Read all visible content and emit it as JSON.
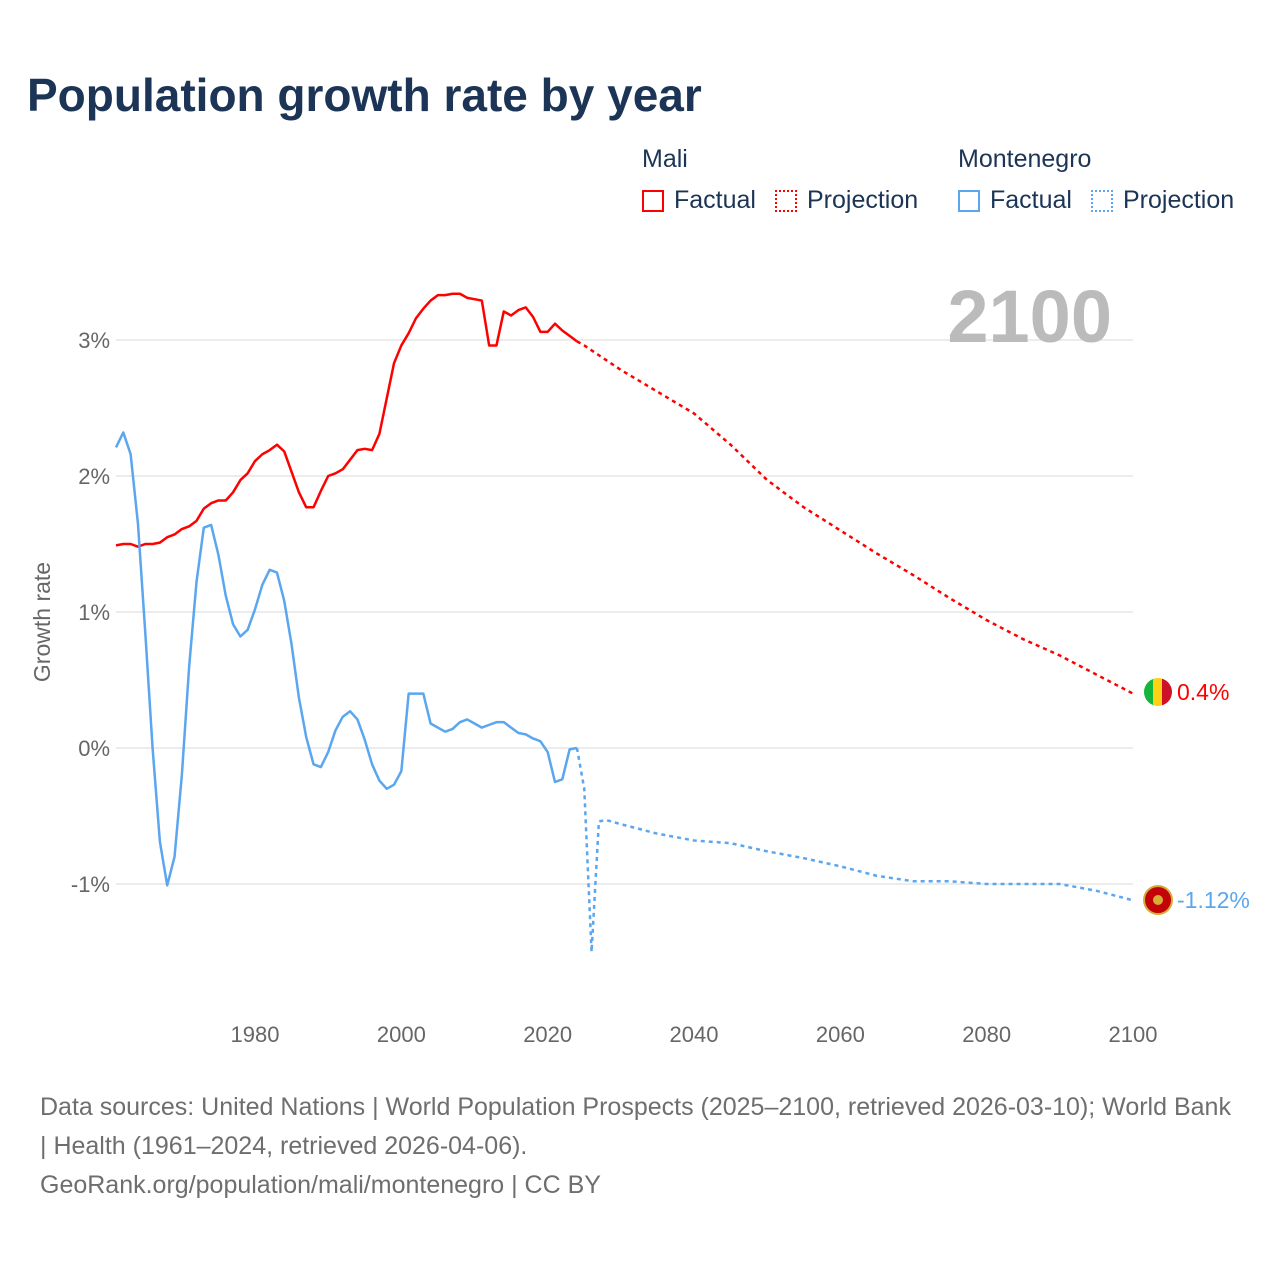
{
  "title": "Population growth rate by year",
  "legend": {
    "groups": [
      {
        "name": "Mali",
        "factual": "Factual",
        "projection": "Projection"
      },
      {
        "name": "Montenegro",
        "factual": "Factual",
        "projection": "Projection"
      }
    ]
  },
  "year_label": "2100",
  "colors": {
    "mali": "#ff0000",
    "montenegro": "#5aa6ef",
    "grid": "#e6e6e6",
    "axis_text": "#666666"
  },
  "chart_data": {
    "type": "line",
    "title": "Population growth rate by year",
    "xlabel": "",
    "ylabel": "Growth rate",
    "xlim": [
      1961,
      2100
    ],
    "ylim": [
      -1.5,
      3.4
    ],
    "x_ticks": [
      1980,
      2000,
      2020,
      2040,
      2060,
      2080,
      2100
    ],
    "y_ticks": [
      {
        "v": 3,
        "label": "3%"
      },
      {
        "v": 2,
        "label": "2%"
      },
      {
        "v": 1,
        "label": "1%"
      },
      {
        "v": 0,
        "label": "0%"
      },
      {
        "v": -1,
        "label": "-1%"
      }
    ],
    "grid": true,
    "series": [
      {
        "name": "Mali",
        "color": "#ff0000",
        "end_label": "0.4%",
        "factual": {
          "x_start": 1961,
          "values": [
            1.49,
            1.5,
            1.5,
            1.48,
            1.5,
            1.5,
            1.51,
            1.55,
            1.57,
            1.61,
            1.63,
            1.67,
            1.76,
            1.8,
            1.82,
            1.82,
            1.88,
            1.97,
            2.02,
            2.11,
            2.16,
            2.19,
            2.23,
            2.18,
            2.03,
            1.88,
            1.77,
            1.77,
            1.89,
            2.0,
            2.02,
            2.05,
            2.12,
            2.19,
            2.2,
            2.19,
            2.31,
            2.57,
            2.83,
            2.96,
            3.05,
            3.16,
            3.23,
            3.29,
            3.33,
            3.33,
            3.34,
            3.34,
            3.31,
            3.3,
            3.29,
            2.96,
            2.96,
            3.21,
            3.18,
            3.22,
            3.24,
            3.17,
            3.06,
            3.06,
            3.12,
            3.07,
            3.03,
            2.99
          ]
        },
        "projection": {
          "x": [
            2024,
            2025,
            2030,
            2035,
            2040,
            2045,
            2050,
            2055,
            2060,
            2065,
            2070,
            2075,
            2080,
            2085,
            2090,
            2095,
            2100
          ],
          "values": [
            2.99,
            2.96,
            2.78,
            2.62,
            2.46,
            2.23,
            1.97,
            1.77,
            1.6,
            1.43,
            1.27,
            1.1,
            0.94,
            0.8,
            0.68,
            0.54,
            0.4
          ]
        }
      },
      {
        "name": "Montenegro",
        "color": "#5aa6ef",
        "end_label": "-1.12%",
        "factual": {
          "x_start": 1961,
          "values": [
            2.21,
            2.32,
            2.16,
            1.65,
            0.85,
            0.0,
            -0.69,
            -1.01,
            -0.8,
            -0.2,
            0.6,
            1.22,
            1.62,
            1.64,
            1.42,
            1.12,
            0.91,
            0.82,
            0.87,
            1.02,
            1.2,
            1.31,
            1.29,
            1.08,
            0.76,
            0.37,
            0.08,
            -0.12,
            -0.14,
            -0.03,
            0.13,
            0.23,
            0.27,
            0.21,
            0.06,
            -0.12,
            -0.24,
            -0.3,
            -0.27,
            -0.17,
            0.4,
            0.4,
            0.4,
            0.18,
            0.15,
            0.12,
            0.14,
            0.19,
            0.21,
            0.18,
            0.15,
            0.17,
            0.19,
            0.19,
            0.15,
            0.11,
            0.1,
            0.07,
            0.05,
            -0.03,
            -0.25,
            -0.23,
            -0.01,
            0.0
          ]
        },
        "projection": {
          "x": [
            2024,
            2025,
            2026,
            2027,
            2028,
            2030,
            2035,
            2040,
            2045,
            2050,
            2055,
            2060,
            2065,
            2070,
            2075,
            2080,
            2085,
            2090,
            2095,
            2100
          ],
          "values": [
            0.0,
            -0.3,
            -1.5,
            -0.54,
            -0.53,
            -0.56,
            -0.63,
            -0.68,
            -0.7,
            -0.76,
            -0.81,
            -0.87,
            -0.94,
            -0.98,
            -0.98,
            -1.0,
            -1.0,
            -1.0,
            -1.05,
            -1.12
          ]
        }
      }
    ]
  },
  "sources": {
    "line1": "Data sources: United Nations | World Population Prospects (2025–2100, retrieved 2026-03-10); World Bank | Health (1961–2024, retrieved 2026-04-06).",
    "line2": "GeoRank.org/population/mali/montenegro | CC BY"
  }
}
